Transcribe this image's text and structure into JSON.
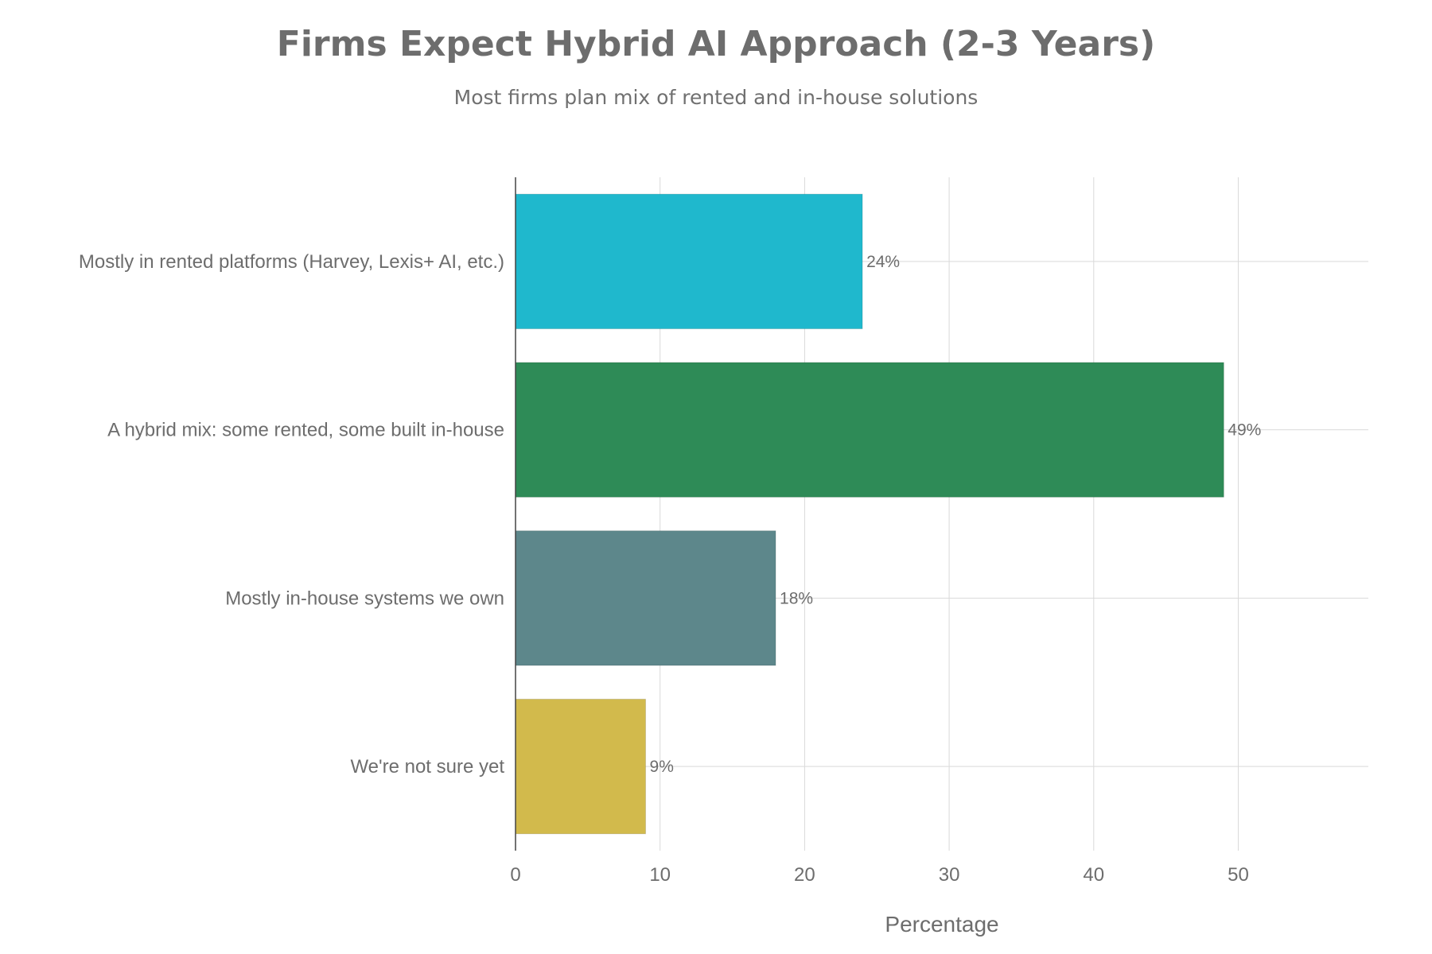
{
  "chart_data": {
    "type": "bar",
    "orientation": "horizontal",
    "title": "Firms Expect Hybrid AI Approach (2-3 Years)",
    "subtitle": "Most firms plan mix of rented and in-house solutions",
    "xlabel": "Percentage",
    "ylabel": "",
    "xlim": [
      0,
      59
    ],
    "xticks": [
      0,
      10,
      20,
      30,
      40,
      50
    ],
    "grid": true,
    "legend": "none",
    "categories": [
      "Mostly in rented platforms (Harvey, Lexis+ AI, etc.)",
      "A hybrid mix: some rented, some built in-house",
      "Mostly in-house systems we own",
      "We're not sure yet"
    ],
    "values": [
      24,
      49,
      18,
      9
    ],
    "value_labels": [
      "24%",
      "49%",
      "18%",
      "9%"
    ],
    "colors": [
      "#1fb8cd",
      "#2e8b57",
      "#5d878b",
      "#d2ba4c"
    ]
  }
}
